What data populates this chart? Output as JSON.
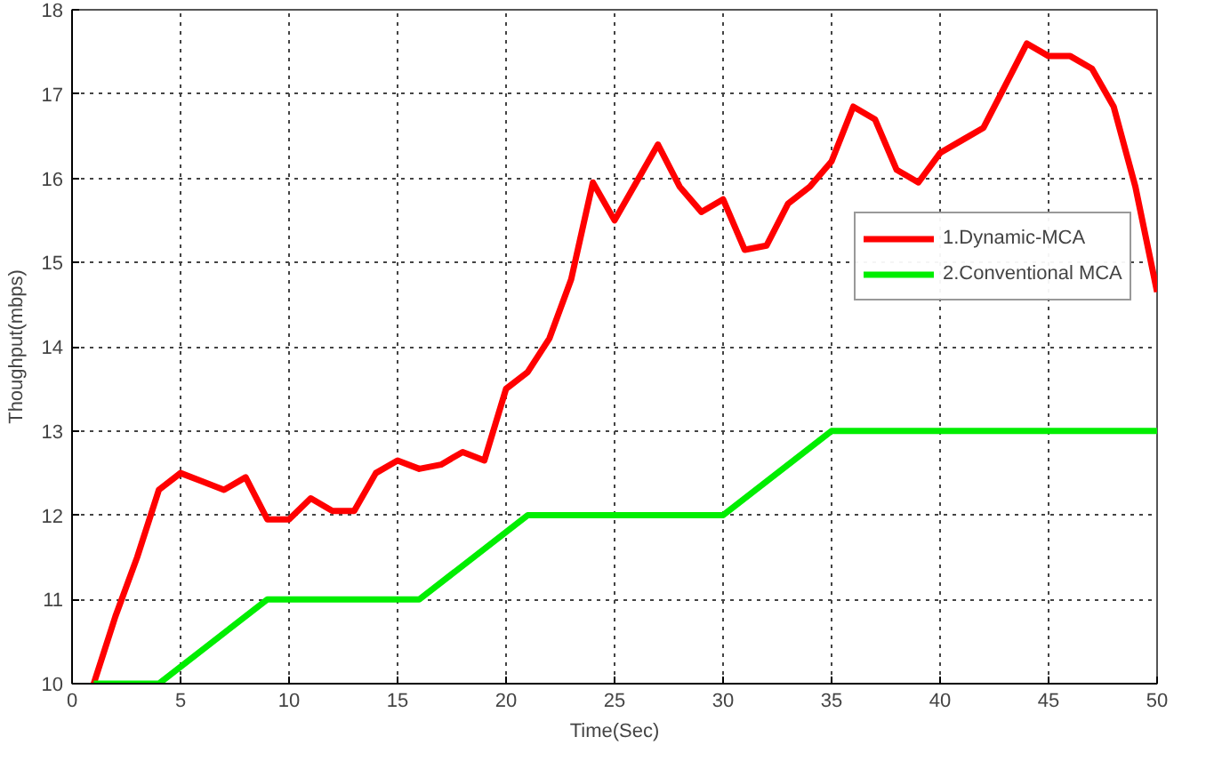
{
  "chart_data": {
    "type": "line",
    "xlabel": "Time(Sec)",
    "ylabel": "Thoughput(mbps)",
    "xlim": [
      0,
      50
    ],
    "ylim": [
      10,
      18
    ],
    "xticks": [
      0,
      5,
      10,
      15,
      20,
      25,
      30,
      35,
      40,
      45,
      50
    ],
    "yticks": [
      10,
      11,
      12,
      13,
      14,
      15,
      16,
      17,
      18
    ],
    "grid": true,
    "legend": "right",
    "line_style": "solid",
    "series": [
      {
        "name": "1.Dynamic-MCA",
        "color": "#ff0000",
        "x": [
          1,
          2,
          3,
          4,
          5,
          6,
          7,
          8,
          9,
          10,
          11,
          12,
          13,
          14,
          15,
          16,
          17,
          18,
          19,
          20,
          21,
          22,
          23,
          24,
          25,
          26,
          27,
          28,
          29,
          30,
          31,
          32,
          33,
          34,
          35,
          36,
          37,
          38,
          39,
          40,
          41,
          42,
          43,
          44,
          45,
          46,
          47,
          48,
          49,
          50
        ],
        "values": [
          10.0,
          10.8,
          11.5,
          12.3,
          12.5,
          12.4,
          12.3,
          12.45,
          11.95,
          11.95,
          12.2,
          12.05,
          12.05,
          12.5,
          12.65,
          12.55,
          12.6,
          12.75,
          12.65,
          13.5,
          13.7,
          14.1,
          14.8,
          15.95,
          15.5,
          15.95,
          16.4,
          15.9,
          15.6,
          15.75,
          15.15,
          15.2,
          15.7,
          15.9,
          16.2,
          16.85,
          16.7,
          16.1,
          15.95,
          16.3,
          16.45,
          16.6,
          17.1,
          17.6,
          17.45,
          17.45,
          17.3,
          16.85,
          15.9,
          14.65
        ]
      },
      {
        "name": "2.Conventional MCA",
        "color": "#00ee00",
        "x": [
          1,
          4,
          9,
          16,
          21,
          30,
          35,
          50
        ],
        "values": [
          10,
          10,
          11,
          11,
          12,
          12,
          13,
          13
        ]
      }
    ]
  }
}
